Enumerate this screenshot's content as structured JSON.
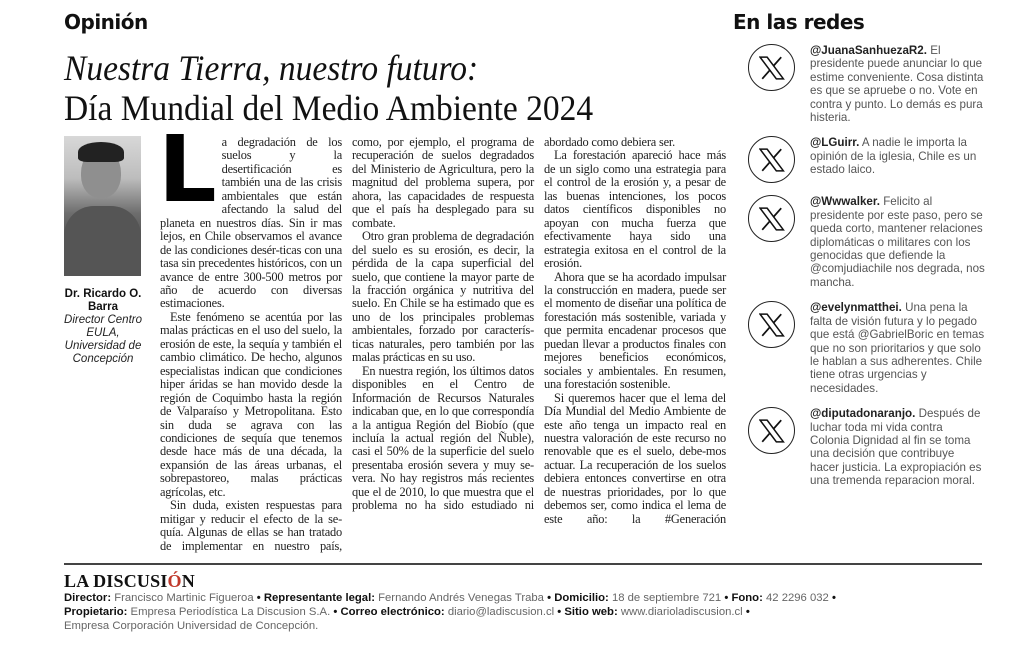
{
  "header": {
    "section": "Opinión",
    "sidebar_title": "En las redes"
  },
  "article": {
    "title_line1": "Nuestra Tierra, nuestro futuro:",
    "title_line2": "Día Mundial del Medio Ambiente 2024",
    "author": {
      "name": "Dr. Ricardo O. Barra",
      "role": "Director Centro EULA, Universidad de Concepción"
    },
    "drop_cap": "L",
    "columns": [
      {
        "paragraphs": [
          "a degradación de los suelos y la desertificación es también una de las crisis ambientales que están afectando la salud del planeta en nuestros días. Sin ir mas lejos, en Chile observamos el avance de las condiciones desér-ticas con una tasa sin precedentes históricos, con un avance de entre 300-500 metros por año de acuerdo con diversas estimaciones.",
          "Este fenómeno se acentúa por las malas prácticas en el uso del suelo, la erosión de este, la sequía y también el cambio climático. De hecho, algunos especialistas indican que condiciones hiper áridas se han movido desde la región de Coquimbo hasta la región de Valparaíso y Metropolitana. Esto sin duda se agrava con las condiciones de sequía que tenemos desde hace más de una década, la expansión de las áreas urbanas, el sobrepastoreo, malas prácticas agrícolas, etc.",
          "Sin duda, existen respuestas para mitigar y reducir el efecto de la se-quía. Algunas de ellas se han tratado de implementar en nuestro país,"
        ]
      },
      {
        "paragraphs": [
          "como, por ejemplo, el programa de recuperación de suelos degradados del Ministerio de Agricultura, pero la magnitud del problema supera, por ahora, las capacidades de respuesta que el país ha desplegado para su combate.",
          "Otro gran problema de degradación del suelo es su erosión, es decir, la pérdida de la capa superficial del suelo, que contiene la mayor parte de la fracción orgánica y nutritiva del suelo. En Chile se ha estimado que es uno de los principales problemas ambientales, forzado por caracterís-ticas naturales, pero también por las malas prácticas en su uso.",
          "En nuestra región, los últimos datos disponibles en el Centro de Información de Recursos Naturales indicaban que, en lo que correspondía a la antigua Región del Biobío (que incluía la actual región del Ñuble), casi el 50% de la superficie del suelo presentaba erosión severa y muy se-vera. No hay registros más recientes que el de 2010, lo que muestra que el problema no ha sido estudiado ni"
        ]
      },
      {
        "paragraphs": [
          "abordado como debiera ser.",
          "La forestación apareció hace más de un siglo como una estrategia para el control de la erosión y, a pesar de las buenas intenciones, los pocos datos científicos disponibles no apoyan con mucha fuerza que efectivamente haya sido una estrategia exitosa en el control de la erosión.",
          "Ahora que se ha acordado impulsar la construcción en madera, puede ser el momento de diseñar una política de forestación más sostenible, variada y que permita encadenar procesos que puedan llevar a productos finales con mejores beneficios económicos, sociales y ambientales. En resumen, una forestación sostenible.",
          "Si queremos hacer que el lema del Día Mundial del Medio Ambiente de este año tenga un impacto real en nuestra valoración de este recurso no renovable que es el suelo, debe-mos actuar. La recuperación de los suelos debiera entonces convertirse en otra de nuestras prioridades, por lo que debemos ser, como indica el lema de este año: la #Generación"
        ]
      }
    ]
  },
  "tweets": [
    {
      "icon": "x-logo-icon",
      "handle": "@JuanaSanhuezaR2.",
      "text": "El presidente puede anunciar lo que estime conveniente. Cosa distinta es que se apruebe o no. Vote en contra y punto. Lo demás es pura histeria."
    },
    {
      "icon": "x-logo-icon",
      "handle": "@LGuirr.",
      "text": "A nadie le importa la opinión de la iglesia, Chile es un estado laico."
    },
    {
      "icon": "x-logo-icon",
      "handle": "@Wwwalker.",
      "text": "Felicito al presidente por este paso, pero se queda corto, mantener relaciones diplomáticas o militares con los genocidas que defiende la @comjudiachile nos degrada, nos mancha."
    },
    {
      "icon": "x-logo-icon",
      "handle": "@evelynmatthei.",
      "text": "Una pena la falta de visión futura y lo pegado que está @GabrielBoric en temas que no son prioritarios y que solo le hablan a sus adherentes. Chile tiene otras urgencias y necesidades."
    },
    {
      "icon": "x-logo-icon",
      "handle": "@diputadonaranjo.",
      "text": "Después de luchar toda mi vida contra Colonia Dignidad al fin se toma una decisión que contribuye hacer justicia. La expropiación es una tremenda reparacion moral."
    }
  ],
  "footer": {
    "logo_main": "LA DISCUSI",
    "logo_accent": "Ó",
    "logo_end": "N",
    "director_label": "Director:",
    "director": "Francisco Martinic Figueroa",
    "rep_label": "Representante legal:",
    "rep": "Fernando Andrés Venegas Traba",
    "domicilio_label": "Domicilio:",
    "domicilio": "18 de septiembre 721",
    "fono_label": "Fono:",
    "fono": "42 2296 032",
    "propietario_label": "Propietario:",
    "propietario": "Empresa Periodística La Discusion S.A.",
    "correo_label": "Correo electrónico:",
    "correo": "diario@ladiscusion.cl",
    "web_label": "Sitio web:",
    "web": "www.diarioladiscusion.cl",
    "empresa": "Empresa Corporación Universidad de Concepción.",
    "separator": "•",
    "accent_color": "#c0392b"
  }
}
